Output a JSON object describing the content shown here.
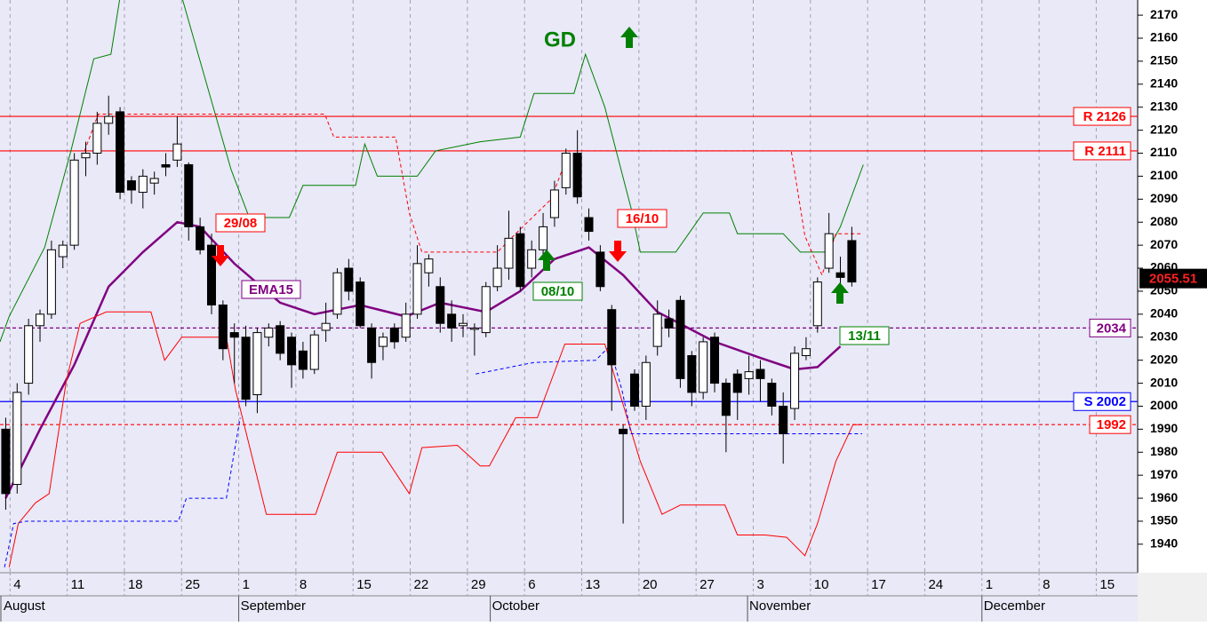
{
  "chart_data": {
    "type": "candlestick",
    "xlim": [
      -0.5,
      99
    ],
    "ylim": [
      1927.6,
      2176.6
    ],
    "yticks": [
      1940,
      1950,
      1960,
      1970,
      1980,
      1990,
      2000,
      2010,
      2020,
      2030,
      2040,
      2050,
      2060,
      2070,
      2080,
      2090,
      2100,
      2110,
      2120,
      2130,
      2140,
      2150,
      2160,
      2170
    ],
    "xticks": [
      {
        "value": 1,
        "label": "4"
      },
      {
        "value": 6,
        "label": "11"
      },
      {
        "value": 11,
        "label": "18"
      },
      {
        "value": 16,
        "label": "25"
      },
      {
        "value": 21,
        "label": "1"
      },
      {
        "value": 26,
        "label": "8"
      },
      {
        "value": 31,
        "label": "15"
      },
      {
        "value": 36,
        "label": "22"
      },
      {
        "value": 41,
        "label": "29"
      },
      {
        "value": 46,
        "label": "6"
      },
      {
        "value": 51,
        "label": "13"
      },
      {
        "value": 56,
        "label": "20"
      },
      {
        "value": 61,
        "label": "27"
      },
      {
        "value": 66,
        "label": "3"
      },
      {
        "value": 71,
        "label": "10"
      },
      {
        "value": 76,
        "label": "17"
      },
      {
        "value": 81,
        "label": "24"
      },
      {
        "value": 86,
        "label": "1"
      },
      {
        "value": 91,
        "label": "8"
      },
      {
        "value": 96,
        "label": "15"
      }
    ],
    "months": [
      {
        "value": 0,
        "label": "August"
      },
      {
        "value": 21,
        "label": "September"
      },
      {
        "value": 43,
        "label": "October"
      },
      {
        "value": 65.5,
        "label": "November"
      },
      {
        "value": 86,
        "label": "December"
      }
    ],
    "up_color": "#ffffff",
    "down_color": "#000000",
    "open": [
      1990,
      1966,
      2010,
      2035,
      2040,
      2065,
      2070,
      2108,
      2110,
      2123,
      2128,
      2098,
      2093,
      2097,
      2105,
      2107,
      2105,
      2078,
      2070,
      2044,
      2032,
      2030,
      2005,
      2030,
      2035,
      2030,
      2024,
      2016,
      2033,
      2040,
      2060,
      2054,
      2034,
      2026,
      2034,
      2030,
      2040,
      2058,
      2052,
      2040,
      2035,
      2034,
      2032,
      2052,
      2060,
      2075,
      2060,
      2068,
      2082,
      2095,
      2110,
      2082,
      2067,
      2042,
      1990,
      2014,
      2000,
      2026,
      2038,
      2046,
      2022,
      2006,
      2030,
      2010,
      2014,
      2012,
      2016,
      2010,
      2000,
      1999,
      2022,
      2035,
      2060,
      2058,
      2072
    ],
    "high": [
      1995,
      2010,
      2038,
      2042,
      2072,
      2072,
      2110,
      2115,
      2128,
      2135,
      2130,
      2100,
      2103,
      2102,
      2110,
      2126,
      2106,
      2082,
      2075,
      2046,
      2036,
      2035,
      2034,
      2036,
      2037,
      2032,
      2028,
      2033,
      2045,
      2060,
      2064,
      2056,
      2036,
      2032,
      2036,
      2045,
      2070,
      2066,
      2056,
      2046,
      2040,
      2036,
      2054,
      2070,
      2085,
      2078,
      2072,
      2084,
      2098,
      2112,
      2120,
      2086,
      2070,
      2044,
      1992,
      2016,
      2022,
      2046,
      2042,
      2048,
      2024,
      2030,
      2032,
      2012,
      2016,
      2022,
      2020,
      2012,
      2006,
      2026,
      2030,
      2056,
      2084,
      2065,
      2078
    ],
    "low": [
      1955,
      1962,
      2005,
      2028,
      2038,
      2060,
      2068,
      2100,
      2105,
      2118,
      2090,
      2088,
      2086,
      2092,
      2100,
      2104,
      2072,
      2066,
      2040,
      2020,
      2010,
      2000,
      1997,
      2026,
      2020,
      2008,
      2012,
      2014,
      2028,
      2038,
      2046,
      2034,
      2012,
      2020,
      2025,
      2028,
      2038,
      2052,
      2032,
      2028,
      2030,
      2022,
      2030,
      2050,
      2055,
      2050,
      2056,
      2064,
      2078,
      2092,
      2088,
      2072,
      2050,
      1998,
      1949,
      1998,
      1994,
      2022,
      2030,
      2008,
      2000,
      2003,
      2006,
      1980,
      1994,
      2005,
      2002,
      1996,
      1975,
      1994,
      2020,
      2032,
      2058,
      2050,
      2052
    ],
    "close": [
      1962,
      2006,
      2035,
      2040,
      2068,
      2070,
      2107,
      2110,
      2123,
      2126,
      2093,
      2094,
      2100,
      2099,
      2104,
      2114,
      2078,
      2068,
      2044,
      2025,
      2030,
      2003,
      2032,
      2034,
      2023,
      2018,
      2016,
      2031,
      2036,
      2058,
      2050,
      2035,
      2019,
      2030,
      2028,
      2040,
      2062,
      2064,
      2036,
      2034,
      2036,
      2034,
      2052,
      2060,
      2073,
      2052,
      2068,
      2078,
      2094,
      2110,
      2091,
      2076,
      2052,
      2018,
      1988,
      2000,
      2019,
      2040,
      2034,
      2012,
      2006,
      2028,
      2010,
      1996,
      2006,
      2015,
      2012,
      2000,
      1988,
      2023,
      2025,
      2054,
      2075,
      2056,
      2054
    ],
    "overlays": [
      {
        "name": "EMA15",
        "color": "#800080",
        "style": "solid",
        "width": 2.5,
        "x": [
          0,
          3,
          6,
          9,
          12,
          15,
          17,
          20,
          24,
          27,
          31,
          35,
          38,
          42,
          45,
          48,
          51,
          54,
          57,
          62,
          66,
          69,
          71,
          73
        ],
        "values": [
          1960,
          1990,
          2018,
          2052,
          2067,
          2080,
          2078,
          2062,
          2045,
          2040,
          2044,
          2039,
          2045,
          2041,
          2050,
          2064,
          2069,
          2057,
          2041,
          2028,
          2021,
          2016,
          2017,
          2026
        ]
      },
      {
        "color": "#008000",
        "style": "solid",
        "width": 1,
        "x": [
          -0.5,
          0.3,
          3.4,
          5.7,
          7.7,
          9.2,
          10,
          15.4,
          19.7,
          21.3,
          24.8,
          26,
          30.6,
          31.4,
          32.5,
          36,
          37.6,
          41.5,
          45,
          46.2,
          49.7,
          50.7,
          52.4,
          54.7,
          55.5,
          58.6,
          61,
          63.3,
          64,
          68,
          69.5,
          71.8,
          73,
          75
        ],
        "values": [
          2028,
          2039,
          2069,
          2111,
          2151,
          2153,
          2178,
          2178,
          2103,
          2082,
          2082,
          2096,
          2096,
          2114,
          2100,
          2100,
          2111,
          2115,
          2117,
          2136,
          2136,
          2153,
          2130,
          2086,
          2067,
          2067,
          2084,
          2084,
          2075,
          2075,
          2067,
          2067,
          2078,
          2105
        ]
      },
      {
        "color": "#ff0000",
        "style": "solid",
        "width": 1,
        "x": [
          0.3,
          1.1,
          2.6,
          3.8,
          5.3,
          6.5,
          8.8,
          12.7,
          13.9,
          15.4,
          19.3,
          20.1,
          22.8,
          27.1,
          29,
          32.9,
          35.3,
          36.4,
          39.5,
          41.5,
          42.3,
          44.6,
          46.5,
          48.9,
          52.4,
          55.5,
          57.4,
          59,
          62.9,
          64,
          66.4,
          68.3,
          69.9,
          71,
          72.6,
          74.1,
          74.9
        ],
        "values": [
          1930,
          1949,
          1958,
          1962,
          2011,
          2036,
          2041,
          2041,
          2020,
          2030,
          2030,
          2007,
          1953,
          1953,
          1980,
          1980,
          1962,
          1982,
          1983,
          1974,
          1974,
          1995,
          1995,
          2027,
          2027,
          1976,
          1953,
          1957,
          1957,
          1944,
          1944,
          1943,
          1935,
          1949,
          1976,
          1992,
          1992
        ]
      },
      {
        "color": "#ff0000",
        "style": "dashed",
        "width": 1,
        "x": [
          6.9,
          8.1,
          27.9,
          28.7,
          34.1,
          35.3,
          36.4,
          43,
          44.6,
          47.7,
          49.3,
          68.7,
          69.9,
          71.4,
          72.6,
          74.9
        ],
        "values": [
          2111,
          2127,
          2127,
          2117,
          2117,
          2084,
          2067,
          2067,
          2075,
          2090,
          2111,
          2111,
          2074,
          2057,
          2075,
          2075
        ]
      },
      {
        "color": "#0000ff",
        "style": "dashed",
        "width": 1,
        "x": [
          -0.1,
          0.7,
          1.8,
          15.1,
          15.8,
          19.3,
          20.5,
          40.3,
          41.1,
          46.2,
          51.6,
          52.8,
          53.9,
          54.7,
          74.9
        ],
        "values": [
          1930,
          1949,
          1950,
          1950,
          1960,
          1960,
          1995,
          null,
          2014,
          2019,
          2020,
          2026,
          2007,
          1988,
          1988
        ]
      }
    ],
    "levels": [
      {
        "value": 2126,
        "label": "R 2126",
        "color": "#ff0000",
        "style": "solid"
      },
      {
        "value": 2111,
        "label": "R 2111",
        "color": "#ff0000",
        "style": "solid"
      },
      {
        "value": 2034,
        "label": "2034",
        "color": "#800080",
        "style": "dashed"
      },
      {
        "value": 2002,
        "label": "S 2002",
        "color": "#0000ff",
        "style": "solid"
      },
      {
        "value": 1992,
        "label": "1992",
        "color": "#ff0000",
        "style": "dashed"
      }
    ],
    "last_price": {
      "value": 2055.51,
      "label": "2055.51"
    },
    "annotations": [
      {
        "text": "29/08",
        "color": "#ff0000",
        "signal": "down"
      },
      {
        "text": "08/10",
        "color": "#008000",
        "signal": "up"
      },
      {
        "text": "16/10",
        "color": "#ff0000",
        "signal": "down"
      },
      {
        "text": "13/11",
        "color": "#008000",
        "signal": "up"
      },
      {
        "text": "GD",
        "color": "#008000",
        "signal": "up"
      }
    ]
  }
}
